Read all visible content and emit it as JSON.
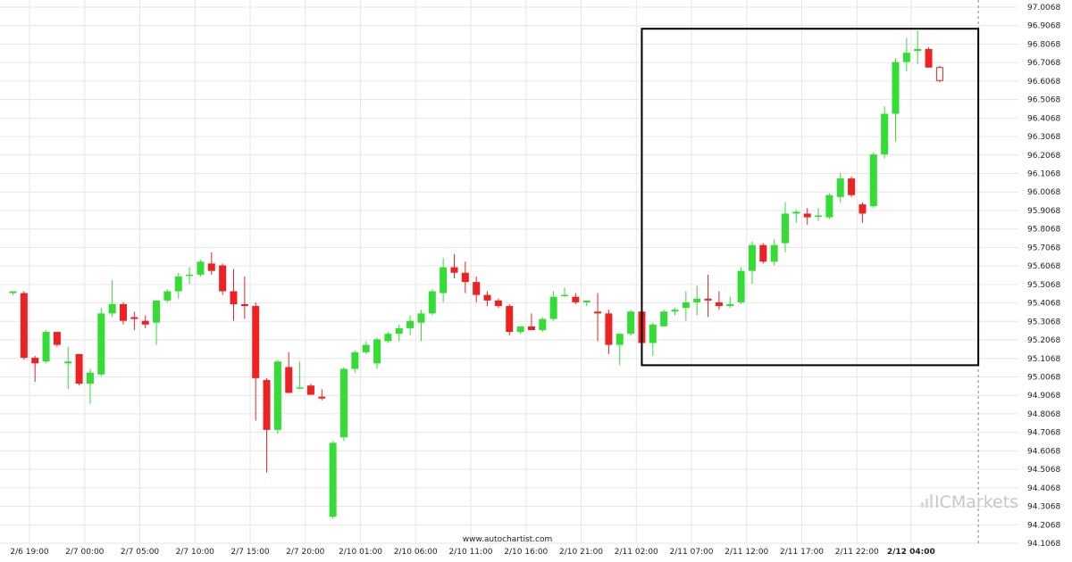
{
  "chart_data": {
    "type": "candlestick",
    "interval": "hourly",
    "colors": {
      "up": "#33dd33",
      "down": "#ee2222",
      "pending": "#ee2222",
      "pattern_box": "#000000"
    },
    "ylim": [
      94.1068,
      97.0068
    ],
    "y_ticks": [
      "97.0068",
      "96.9068",
      "96.8068",
      "96.7068",
      "96.6068",
      "96.5068",
      "96.4068",
      "96.3068",
      "96.2068",
      "96.1068",
      "96.0068",
      "95.9068",
      "95.8068",
      "95.7068",
      "95.6068",
      "95.5068",
      "95.4068",
      "95.3068",
      "95.2068",
      "95.1068",
      "95.0068",
      "94.9068",
      "94.8068",
      "94.7068",
      "94.6068",
      "94.5068",
      "94.4068",
      "94.3068",
      "94.2068",
      "94.1068"
    ],
    "x_ticks": [
      {
        "label": "2/6 19:00",
        "index": 1.5
      },
      {
        "label": "2/7 00:00",
        "index": 6.5
      },
      {
        "label": "2/7 05:00",
        "index": 11.5
      },
      {
        "label": "2/7 10:00",
        "index": 16.5
      },
      {
        "label": "2/7 15:00",
        "index": 21.5
      },
      {
        "label": "2/7 20:00",
        "index": 26.5
      },
      {
        "label": "2/10 01:00",
        "index": 31.5
      },
      {
        "label": "2/10 06:00",
        "index": 36.5
      },
      {
        "label": "2/10 11:00",
        "index": 41.5
      },
      {
        "label": "2/10 16:00",
        "index": 46.5
      },
      {
        "label": "2/10 21:00",
        "index": 51.5
      },
      {
        "label": "2/11 02:00",
        "index": 56.5
      },
      {
        "label": "2/11 07:00",
        "index": 61.5
      },
      {
        "label": "2/11 12:00",
        "index": 66.5
      },
      {
        "label": "2/11 17:00",
        "index": 71.5
      },
      {
        "label": "2/11 22:00",
        "index": 76.5
      },
      {
        "label": "2/12 04:00",
        "index": 81.4,
        "bold": true
      }
    ],
    "candles": [
      {
        "o": 95.46,
        "h": 95.47,
        "l": 95.45,
        "c": 95.47
      },
      {
        "o": 95.46,
        "h": 95.47,
        "l": 95.1,
        "c": 95.11
      },
      {
        "o": 95.11,
        "h": 95.12,
        "l": 94.98,
        "c": 95.08
      },
      {
        "o": 95.09,
        "h": 95.26,
        "l": 95.08,
        "c": 95.25
      },
      {
        "o": 95.25,
        "h": 95.25,
        "l": 95.17,
        "c": 95.18
      },
      {
        "o": 95.08,
        "h": 95.17,
        "l": 94.94,
        "c": 95.09
      },
      {
        "o": 95.13,
        "h": 95.13,
        "l": 94.96,
        "c": 94.97
      },
      {
        "o": 94.97,
        "h": 95.05,
        "l": 94.86,
        "c": 95.03
      },
      {
        "o": 95.02,
        "h": 95.38,
        "l": 95.01,
        "c": 95.35
      },
      {
        "o": 95.35,
        "h": 95.53,
        "l": 95.33,
        "c": 95.4
      },
      {
        "o": 95.4,
        "h": 95.41,
        "l": 95.29,
        "c": 95.31
      },
      {
        "o": 95.33,
        "h": 95.36,
        "l": 95.26,
        "c": 95.32
      },
      {
        "o": 95.31,
        "h": 95.34,
        "l": 95.27,
        "c": 95.29
      },
      {
        "o": 95.3,
        "h": 95.42,
        "l": 95.18,
        "c": 95.42
      },
      {
        "o": 95.42,
        "h": 95.48,
        "l": 95.41,
        "c": 95.47
      },
      {
        "o": 95.47,
        "h": 95.57,
        "l": 95.43,
        "c": 95.55
      },
      {
        "o": 95.56,
        "h": 95.6,
        "l": 95.51,
        "c": 95.56
      },
      {
        "o": 95.56,
        "h": 95.64,
        "l": 95.55,
        "c": 95.63
      },
      {
        "o": 95.62,
        "h": 95.68,
        "l": 95.56,
        "c": 95.58
      },
      {
        "o": 95.61,
        "h": 95.62,
        "l": 95.45,
        "c": 95.47
      },
      {
        "o": 95.47,
        "h": 95.59,
        "l": 95.31,
        "c": 95.4
      },
      {
        "o": 95.4,
        "h": 95.55,
        "l": 95.32,
        "c": 95.39
      },
      {
        "o": 95.39,
        "h": 95.41,
        "l": 94.77,
        "c": 95.0
      },
      {
        "o": 94.99,
        "h": 95.0,
        "l": 94.49,
        "c": 94.72
      },
      {
        "o": 94.72,
        "h": 95.1,
        "l": 94.7,
        "c": 95.09
      },
      {
        "o": 95.06,
        "h": 95.14,
        "l": 94.92,
        "c": 94.92
      },
      {
        "o": 94.95,
        "h": 95.09,
        "l": 94.94,
        "c": 94.95
      },
      {
        "o": 94.96,
        "h": 94.97,
        "l": 94.91,
        "c": 94.91
      },
      {
        "o": 94.9,
        "h": 94.94,
        "l": 94.88,
        "c": 94.89
      },
      {
        "o": 94.25,
        "h": 94.66,
        "l": 94.24,
        "c": 94.65
      },
      {
        "o": 94.68,
        "h": 95.06,
        "l": 94.66,
        "c": 95.05
      },
      {
        "o": 95.05,
        "h": 95.15,
        "l": 95.03,
        "c": 95.14
      },
      {
        "o": 95.14,
        "h": 95.2,
        "l": 95.13,
        "c": 95.18
      },
      {
        "o": 95.08,
        "h": 95.22,
        "l": 95.05,
        "c": 95.21
      },
      {
        "o": 95.2,
        "h": 95.25,
        "l": 95.19,
        "c": 95.24
      },
      {
        "o": 95.24,
        "h": 95.29,
        "l": 95.2,
        "c": 95.27
      },
      {
        "o": 95.27,
        "h": 95.34,
        "l": 95.23,
        "c": 95.31
      },
      {
        "o": 95.3,
        "h": 95.37,
        "l": 95.2,
        "c": 95.35
      },
      {
        "o": 95.35,
        "h": 95.48,
        "l": 95.34,
        "c": 95.47
      },
      {
        "o": 95.46,
        "h": 95.65,
        "l": 95.41,
        "c": 95.6
      },
      {
        "o": 95.6,
        "h": 95.67,
        "l": 95.54,
        "c": 95.57
      },
      {
        "o": 95.57,
        "h": 95.63,
        "l": 95.46,
        "c": 95.52
      },
      {
        "o": 95.52,
        "h": 95.55,
        "l": 95.41,
        "c": 95.45
      },
      {
        "o": 95.45,
        "h": 95.47,
        "l": 95.39,
        "c": 95.42
      },
      {
        "o": 95.42,
        "h": 95.43,
        "l": 95.38,
        "c": 95.39
      },
      {
        "o": 95.39,
        "h": 95.4,
        "l": 95.23,
        "c": 95.25
      },
      {
        "o": 95.25,
        "h": 95.27,
        "l": 95.24,
        "c": 95.28
      },
      {
        "o": 95.28,
        "h": 95.35,
        "l": 95.26,
        "c": 95.26
      },
      {
        "o": 95.26,
        "h": 95.33,
        "l": 95.25,
        "c": 95.32
      },
      {
        "o": 95.32,
        "h": 95.47,
        "l": 95.31,
        "c": 95.44
      },
      {
        "o": 95.45,
        "h": 95.49,
        "l": 95.44,
        "c": 95.45
      },
      {
        "o": 95.44,
        "h": 95.46,
        "l": 95.4,
        "c": 95.41
      },
      {
        "o": 95.41,
        "h": 95.42,
        "l": 95.39,
        "c": 95.42
      },
      {
        "o": 95.36,
        "h": 95.46,
        "l": 95.2,
        "c": 95.35
      },
      {
        "o": 95.35,
        "h": 95.37,
        "l": 95.13,
        "c": 95.18
      },
      {
        "o": 95.18,
        "h": 95.22,
        "l": 95.07,
        "c": 95.24
      },
      {
        "o": 95.24,
        "h": 95.37,
        "l": 95.23,
        "c": 95.36
      },
      {
        "o": 95.36,
        "h": 95.38,
        "l": 95.16,
        "c": 95.19
      },
      {
        "o": 95.19,
        "h": 95.3,
        "l": 95.12,
        "c": 95.29
      },
      {
        "o": 95.28,
        "h": 95.37,
        "l": 95.28,
        "c": 95.36
      },
      {
        "o": 95.36,
        "h": 95.38,
        "l": 95.34,
        "c": 95.37
      },
      {
        "o": 95.38,
        "h": 95.47,
        "l": 95.31,
        "c": 95.41
      },
      {
        "o": 95.41,
        "h": 95.5,
        "l": 95.34,
        "c": 95.43
      },
      {
        "o": 95.43,
        "h": 95.56,
        "l": 95.33,
        "c": 95.42
      },
      {
        "o": 95.41,
        "h": 95.47,
        "l": 95.37,
        "c": 95.39
      },
      {
        "o": 95.39,
        "h": 95.44,
        "l": 95.38,
        "c": 95.4
      },
      {
        "o": 95.41,
        "h": 95.6,
        "l": 95.4,
        "c": 95.58
      },
      {
        "o": 95.58,
        "h": 95.74,
        "l": 95.51,
        "c": 95.72
      },
      {
        "o": 95.72,
        "h": 95.73,
        "l": 95.62,
        "c": 95.63
      },
      {
        "o": 95.63,
        "h": 95.75,
        "l": 95.61,
        "c": 95.72
      },
      {
        "o": 95.73,
        "h": 95.95,
        "l": 95.68,
        "c": 95.89
      },
      {
        "o": 95.89,
        "h": 95.91,
        "l": 95.84,
        "c": 95.9
      },
      {
        "o": 95.89,
        "h": 95.92,
        "l": 95.83,
        "c": 95.87
      },
      {
        "o": 95.88,
        "h": 95.92,
        "l": 95.85,
        "c": 95.88
      },
      {
        "o": 95.87,
        "h": 96.0,
        "l": 95.86,
        "c": 95.99
      },
      {
        "o": 95.98,
        "h": 96.11,
        "l": 95.95,
        "c": 96.08
      },
      {
        "o": 96.08,
        "h": 96.09,
        "l": 95.98,
        "c": 95.99
      },
      {
        "o": 95.94,
        "h": 95.95,
        "l": 95.84,
        "c": 95.89
      },
      {
        "o": 95.93,
        "h": 96.22,
        "l": 95.92,
        "c": 96.21
      },
      {
        "o": 96.21,
        "h": 96.47,
        "l": 96.19,
        "c": 96.43
      },
      {
        "o": 96.43,
        "h": 96.73,
        "l": 96.28,
        "c": 96.71
      },
      {
        "o": 96.71,
        "h": 96.84,
        "l": 96.66,
        "c": 96.76
      },
      {
        "o": 96.77,
        "h": 96.88,
        "l": 96.7,
        "c": 96.78
      },
      {
        "o": 96.78,
        "h": 96.79,
        "l": 96.68,
        "c": 96.68
      }
    ],
    "pending_candle": {
      "o": 96.68,
      "h": 96.69,
      "l": 96.6,
      "c": 96.61
    },
    "pattern_box": {
      "start_index": 57.0,
      "end_index": 87.5,
      "low": 95.07,
      "high": 96.89
    },
    "current_time_marker_index": 87.5
  },
  "source_text": "www.autochartist.com",
  "brand": {
    "name": "ICMarkets"
  }
}
